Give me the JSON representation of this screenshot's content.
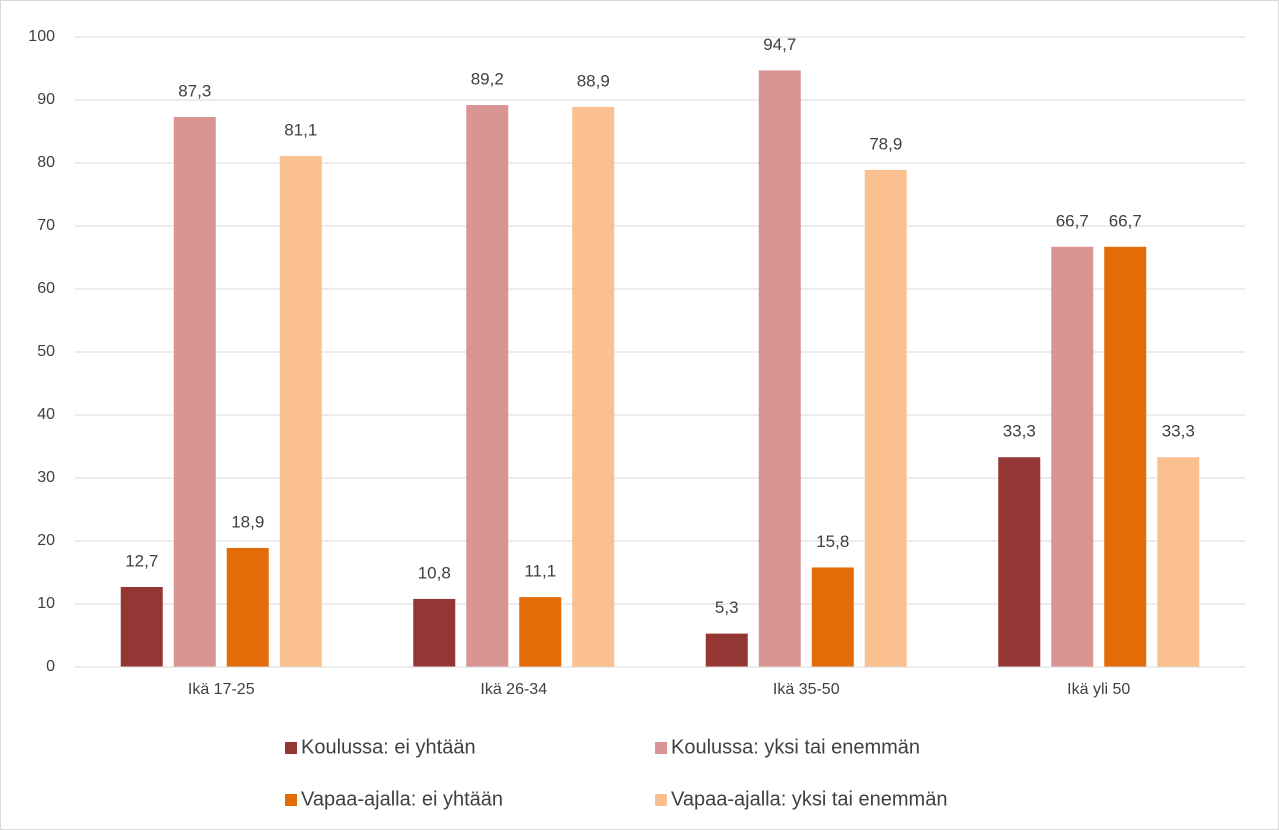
{
  "chart_data": {
    "type": "bar",
    "categories": [
      "Ikä 17-25",
      "Ikä 26-34",
      "Ikä 35-50",
      "Ikä yli 50"
    ],
    "series": [
      {
        "name": "Koulussa: ei yhtään",
        "color": "#943634",
        "values": [
          12.7,
          10.8,
          5.3,
          33.3
        ],
        "value_labels": [
          "12,7",
          "10,8",
          "5,3",
          "33,3"
        ]
      },
      {
        "name": "Koulussa: yksi tai enemmän",
        "color": "#d99594",
        "values": [
          87.3,
          89.2,
          94.7,
          66.7
        ],
        "value_labels": [
          "87,3",
          "89,2",
          "94,7",
          "66,7"
        ]
      },
      {
        "name": "Vapaa-ajalla: ei yhtään",
        "color": "#e36c09",
        "values": [
          18.9,
          11.1,
          15.8,
          66.7
        ],
        "value_labels": [
          "18,9",
          "11,1",
          "15,8",
          "66,7"
        ]
      },
      {
        "name": "Vapaa-ajalla: yksi tai enemmän",
        "color": "#fac08f",
        "values": [
          81.1,
          88.9,
          78.9,
          33.3
        ],
        "value_labels": [
          "81,1",
          "88,9",
          "78,9",
          "33,3"
        ]
      }
    ],
    "ylim": [
      0,
      100
    ],
    "yticks": [
      0,
      10,
      20,
      30,
      40,
      50,
      60,
      70,
      80,
      90,
      100
    ],
    "grid": true,
    "legend": "bottom"
  }
}
